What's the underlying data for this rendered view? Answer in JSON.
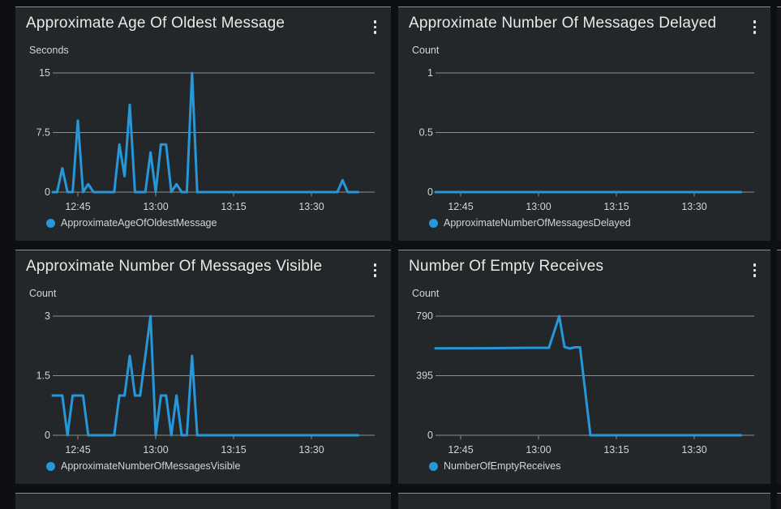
{
  "colors": {
    "page_bg": "#0d0f14",
    "panel_bg": "#242729",
    "panel_top_border": "#8d8e88",
    "grid": "#8b8d8f",
    "axis_text": "#d2d5d5",
    "title_text": "#e9eae4",
    "series_blue": "#2697d8"
  },
  "icons": {
    "widget_menu": "kebab-vertical-dots",
    "legend_marker": "filled-circle"
  },
  "chart_data": [
    {
      "type": "line",
      "title": "Approximate Age Of Oldest Message",
      "ylabel": "Seconds",
      "ylim": [
        0,
        15
      ],
      "y_ticks": [
        0,
        7.5,
        15
      ],
      "x_ticks": [
        "12:45",
        "13:00",
        "13:15",
        "13:30"
      ],
      "xlim": [
        "12:40",
        "13:42"
      ],
      "grid": true,
      "legend_position": "bottom-left",
      "series": [
        {
          "name": "ApproximateAgeOfOldestMessage",
          "color": "#2697d8",
          "points": [
            [
              "12:40",
              0
            ],
            [
              "12:41",
              0
            ],
            [
              "12:42",
              3
            ],
            [
              "12:43",
              0
            ],
            [
              "12:44",
              0
            ],
            [
              "12:45",
              9
            ],
            [
              "12:46",
              0
            ],
            [
              "12:47",
              1
            ],
            [
              "12:48",
              0
            ],
            [
              "12:52",
              0
            ],
            [
              "12:53",
              6
            ],
            [
              "12:54",
              2
            ],
            [
              "12:55",
              11
            ],
            [
              "12:56",
              0
            ],
            [
              "12:58",
              0
            ],
            [
              "12:59",
              5
            ],
            [
              "13:00",
              0
            ],
            [
              "13:01",
              6
            ],
            [
              "13:02",
              6
            ],
            [
              "13:03",
              0
            ],
            [
              "13:04",
              1
            ],
            [
              "13:05",
              0
            ],
            [
              "13:06",
              0
            ],
            [
              "13:07",
              15
            ],
            [
              "13:08",
              0
            ],
            [
              "13:35",
              0
            ],
            [
              "13:36",
              1.5
            ],
            [
              "13:37",
              0
            ],
            [
              "13:39",
              0
            ]
          ]
        }
      ]
    },
    {
      "type": "line",
      "title": "Approximate Number Of Messages Delayed",
      "ylabel": "Count",
      "ylim": [
        0,
        1
      ],
      "y_ticks": [
        0,
        0.5,
        1
      ],
      "x_ticks": [
        "12:45",
        "13:00",
        "13:15",
        "13:30"
      ],
      "xlim": [
        "12:40",
        "13:42"
      ],
      "grid": true,
      "legend_position": "bottom-left",
      "series": [
        {
          "name": "ApproximateNumberOfMessagesDelayed",
          "color": "#2697d8",
          "points": [
            [
              "12:40",
              0
            ],
            [
              "13:39",
              0
            ]
          ]
        }
      ]
    },
    {
      "type": "line",
      "title": "Approximate Number Of Messages Visible",
      "ylabel": "Count",
      "ylim": [
        0,
        3
      ],
      "y_ticks": [
        0,
        1.5,
        3
      ],
      "x_ticks": [
        "12:45",
        "13:00",
        "13:15",
        "13:30"
      ],
      "xlim": [
        "12:40",
        "13:42"
      ],
      "grid": true,
      "legend_position": "bottom-left",
      "series": [
        {
          "name": "ApproximateNumberOfMessagesVisible",
          "color": "#2697d8",
          "points": [
            [
              "12:40",
              1
            ],
            [
              "12:42",
              1
            ],
            [
              "12:43",
              0
            ],
            [
              "12:44",
              1
            ],
            [
              "12:46",
              1
            ],
            [
              "12:47",
              0
            ],
            [
              "12:52",
              0
            ],
            [
              "12:53",
              1
            ],
            [
              "12:54",
              1
            ],
            [
              "12:55",
              2
            ],
            [
              "12:56",
              1
            ],
            [
              "12:57",
              1
            ],
            [
              "12:59",
              3
            ],
            [
              "13:00",
              0
            ],
            [
              "13:01",
              1
            ],
            [
              "13:02",
              1
            ],
            [
              "13:03",
              0
            ],
            [
              "13:04",
              1
            ],
            [
              "13:05",
              0
            ],
            [
              "13:06",
              0
            ],
            [
              "13:07",
              2
            ],
            [
              "13:08",
              0
            ],
            [
              "13:39",
              0
            ]
          ]
        }
      ]
    },
    {
      "type": "line",
      "title": "Number Of Empty Receives",
      "ylabel": "Count",
      "ylim": [
        0,
        790
      ],
      "y_ticks": [
        0,
        395,
        790
      ],
      "x_ticks": [
        "12:45",
        "13:00",
        "13:15",
        "13:30"
      ],
      "xlim": [
        "12:40",
        "13:42"
      ],
      "grid": true,
      "legend_position": "bottom-left",
      "series": [
        {
          "name": "NumberOfEmptyReceives",
          "color": "#2697d8",
          "points": [
            [
              "12:40",
              576
            ],
            [
              "12:50",
              577
            ],
            [
              "12:58",
              580
            ],
            [
              "13:02",
              580
            ],
            [
              "13:04",
              790
            ],
            [
              "13:05",
              585
            ],
            [
              "13:06",
              575
            ],
            [
              "13:07",
              583
            ],
            [
              "13:08",
              583
            ],
            [
              "13:10",
              0
            ],
            [
              "13:39",
              0
            ]
          ]
        }
      ]
    }
  ]
}
